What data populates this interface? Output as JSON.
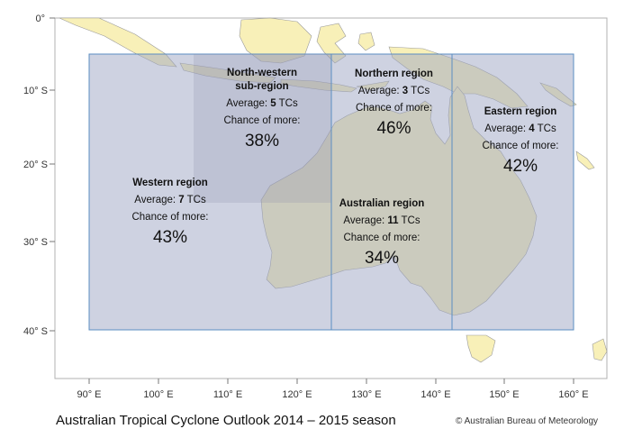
{
  "title": "Australian Tropical Cyclone Outlook 2014 – 2015 season",
  "copyright": "© Australian Bureau of Meteorology",
  "axes": {
    "lat_ticks": [
      "0°",
      "10° S",
      "20° S",
      "30° S",
      "40° S"
    ],
    "lon_ticks": [
      "90° E",
      "100° E",
      "110° E",
      "120° E",
      "130° E",
      "140° E",
      "150° E",
      "160° E"
    ]
  },
  "regions": {
    "north_western": {
      "name_line1": "North-western",
      "name_line2": "sub-region",
      "avg_prefix": "Average: ",
      "avg_value": "5",
      "avg_suffix": " TCs",
      "chance_label": "Chance of more:",
      "chance_value": "38%"
    },
    "northern": {
      "name": "Northern region",
      "avg_prefix": "Average: ",
      "avg_value": "3",
      "avg_suffix": " TCs",
      "chance_label": "Chance of more:",
      "chance_value": "46%"
    },
    "eastern": {
      "name": "Eastern region",
      "avg_prefix": "Average: ",
      "avg_value": "4",
      "avg_suffix": " TCs",
      "chance_label": "Chance of more:",
      "chance_value": "42%"
    },
    "western": {
      "name": "Western region",
      "avg_prefix": "Average: ",
      "avg_value": "7",
      "avg_suffix": " TCs",
      "chance_label": "Chance of more:",
      "chance_value": "43%"
    },
    "australian": {
      "name": "Australian region",
      "avg_prefix": "Average: ",
      "avg_value": "11",
      "avg_suffix": " TCs",
      "chance_label": "Chance of more:",
      "chance_value": "34%"
    }
  },
  "colors": {
    "land": "#f8f0b8",
    "ocean": "#ffffff",
    "region_fill": "#c5c9d8",
    "nw_fill": "#b7b8ca",
    "region_border": "#5b8ec2",
    "map_frame": "#b0b0b0"
  }
}
